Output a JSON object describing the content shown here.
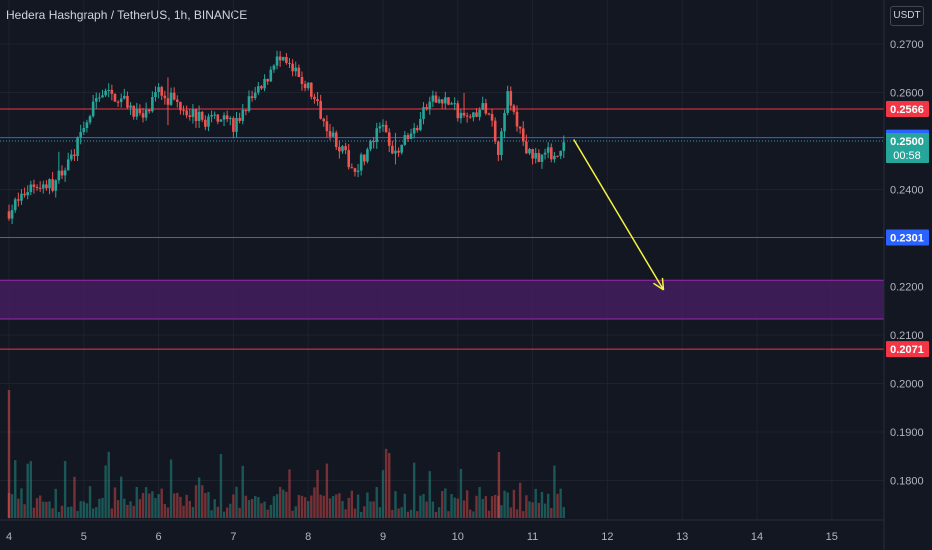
{
  "header": {
    "title": "Hedera Hashgraph / TetherUS, 1h, BINANCE",
    "currency": "USDT"
  },
  "colors": {
    "background": "#131722",
    "grid": "#1e222d",
    "up": "#26a69a",
    "down": "#ef5350",
    "red_line": "#f23645",
    "blue_line": "#2962ff",
    "zone_fill": "#4a1f66",
    "zone_border": "#9c27b0",
    "arrow": "#f5f542",
    "axis_text": "#b2b5be"
  },
  "chart_data": {
    "type": "candlestick",
    "title": "Hedera Hashgraph / TetherUS, 1h, BINANCE",
    "x_ticks": [
      "4",
      "5",
      "6",
      "7",
      "8",
      "9",
      "10",
      "11",
      "12",
      "13",
      "14",
      "15"
    ],
    "y_ticks": [
      "0.2700",
      "0.2600",
      "0.2400",
      "0.2200",
      "0.2100",
      "0.2000",
      "0.1900",
      "0.1800"
    ],
    "ylim": [
      0.175,
      0.275
    ],
    "grid": true,
    "price_lines": [
      {
        "value": 0.2566,
        "label": "0.2566",
        "color": "red"
      },
      {
        "value": 0.2507,
        "label": "0.2507",
        "color": "blue"
      },
      {
        "value": 0.2301,
        "label": "0.2301",
        "color": "blue"
      },
      {
        "value": 0.2071,
        "label": "0.2071",
        "color": "red"
      }
    ],
    "current_price": {
      "value": 0.25,
      "label": "0.2500",
      "countdown": "00:58"
    },
    "zone": {
      "top": 0.2213,
      "bottom": 0.2133
    },
    "arrow": {
      "from_day": 11.55,
      "from_price": 0.2503,
      "to_day": 12.75,
      "to_price": 0.2193
    },
    "anchors": [
      [
        4.0,
        0.2355
      ],
      [
        4.3,
        0.241
      ],
      [
        4.6,
        0.241
      ],
      [
        4.8,
        0.246
      ],
      [
        5.0,
        0.252
      ],
      [
        5.2,
        0.26
      ],
      [
        5.5,
        0.259
      ],
      [
        5.8,
        0.2545
      ],
      [
        6.0,
        0.26
      ],
      [
        6.3,
        0.2575
      ],
      [
        6.6,
        0.254
      ],
      [
        6.9,
        0.256
      ],
      [
        7.0,
        0.2525
      ],
      [
        7.2,
        0.258
      ],
      [
        7.4,
        0.261
      ],
      [
        7.55,
        0.267
      ],
      [
        7.75,
        0.265
      ],
      [
        8.0,
        0.261
      ],
      [
        8.3,
        0.252
      ],
      [
        8.6,
        0.244
      ],
      [
        8.8,
        0.248
      ],
      [
        9.0,
        0.2535
      ],
      [
        9.1,
        0.2475
      ],
      [
        9.4,
        0.2515
      ],
      [
        9.6,
        0.2575
      ],
      [
        9.8,
        0.259
      ],
      [
        10.1,
        0.2545
      ],
      [
        10.4,
        0.257
      ],
      [
        10.55,
        0.248
      ],
      [
        10.65,
        0.26
      ],
      [
        10.8,
        0.253
      ],
      [
        10.95,
        0.247
      ],
      [
        11.3,
        0.2475
      ],
      [
        11.45,
        0.2502
      ]
    ],
    "volume_max_label": "spike near day 4 and day 10.55"
  }
}
